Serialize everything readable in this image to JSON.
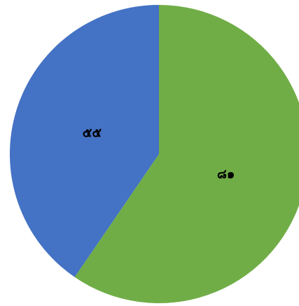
{
  "chart_data": {
    "type": "pie",
    "values": [
      81,
      55
    ],
    "value_labels": [
      "๘๑",
      "๕๕"
    ],
    "colors": [
      "#70ad47",
      "#4472c4"
    ]
  }
}
